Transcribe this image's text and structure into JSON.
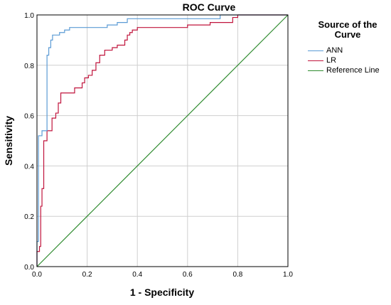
{
  "chart_data": {
    "type": "line",
    "title": "ROC Curve",
    "xlabel": "1 - Specificity",
    "ylabel": "Sensitivity",
    "xlim": [
      0,
      1
    ],
    "ylim": [
      0,
      1
    ],
    "xticks": [
      "0.0",
      "0.2",
      "0.4",
      "0.6",
      "0.8",
      "1.0"
    ],
    "yticks": [
      "0.0",
      "0.2",
      "0.4",
      "0.6",
      "0.8",
      "1.0"
    ],
    "grid": true,
    "legend": {
      "title": "Source of the Curve",
      "placement": "right"
    },
    "series": [
      {
        "name": "ANN",
        "color": "#5b9bd5",
        "points": [
          [
            0,
            0
          ],
          [
            0,
            0.1
          ],
          [
            0.006,
            0.1
          ],
          [
            0.006,
            0.52
          ],
          [
            0.02,
            0.52
          ],
          [
            0.02,
            0.54
          ],
          [
            0.04,
            0.54
          ],
          [
            0.04,
            0.84
          ],
          [
            0.047,
            0.84
          ],
          [
            0.047,
            0.87
          ],
          [
            0.055,
            0.87
          ],
          [
            0.055,
            0.9
          ],
          [
            0.062,
            0.9
          ],
          [
            0.062,
            0.92
          ],
          [
            0.09,
            0.92
          ],
          [
            0.09,
            0.93
          ],
          [
            0.11,
            0.93
          ],
          [
            0.11,
            0.94
          ],
          [
            0.13,
            0.94
          ],
          [
            0.13,
            0.95
          ],
          [
            0.28,
            0.95
          ],
          [
            0.28,
            0.96
          ],
          [
            0.32,
            0.96
          ],
          [
            0.32,
            0.97
          ],
          [
            0.36,
            0.97
          ],
          [
            0.36,
            0.985
          ],
          [
            0.73,
            0.985
          ],
          [
            0.73,
            1.0
          ],
          [
            1.0,
            1.0
          ]
        ]
      },
      {
        "name": "LR",
        "color": "#c0143c",
        "points": [
          [
            0,
            0
          ],
          [
            0,
            0.06
          ],
          [
            0.01,
            0.06
          ],
          [
            0.01,
            0.08
          ],
          [
            0.015,
            0.08
          ],
          [
            0.015,
            0.24
          ],
          [
            0.02,
            0.24
          ],
          [
            0.02,
            0.31
          ],
          [
            0.027,
            0.31
          ],
          [
            0.027,
            0.5
          ],
          [
            0.04,
            0.5
          ],
          [
            0.04,
            0.54
          ],
          [
            0.06,
            0.54
          ],
          [
            0.06,
            0.59
          ],
          [
            0.075,
            0.59
          ],
          [
            0.075,
            0.61
          ],
          [
            0.085,
            0.61
          ],
          [
            0.085,
            0.65
          ],
          [
            0.095,
            0.65
          ],
          [
            0.095,
            0.69
          ],
          [
            0.15,
            0.69
          ],
          [
            0.15,
            0.71
          ],
          [
            0.18,
            0.71
          ],
          [
            0.18,
            0.73
          ],
          [
            0.19,
            0.73
          ],
          [
            0.19,
            0.75
          ],
          [
            0.205,
            0.75
          ],
          [
            0.205,
            0.76
          ],
          [
            0.22,
            0.76
          ],
          [
            0.22,
            0.78
          ],
          [
            0.235,
            0.78
          ],
          [
            0.235,
            0.81
          ],
          [
            0.25,
            0.81
          ],
          [
            0.25,
            0.84
          ],
          [
            0.27,
            0.84
          ],
          [
            0.27,
            0.86
          ],
          [
            0.3,
            0.86
          ],
          [
            0.3,
            0.87
          ],
          [
            0.32,
            0.87
          ],
          [
            0.32,
            0.88
          ],
          [
            0.35,
            0.88
          ],
          [
            0.35,
            0.9
          ],
          [
            0.36,
            0.9
          ],
          [
            0.36,
            0.92
          ],
          [
            0.37,
            0.92
          ],
          [
            0.37,
            0.93
          ],
          [
            0.38,
            0.93
          ],
          [
            0.38,
            0.94
          ],
          [
            0.4,
            0.94
          ],
          [
            0.4,
            0.95
          ],
          [
            0.6,
            0.95
          ],
          [
            0.6,
            0.96
          ],
          [
            0.69,
            0.96
          ],
          [
            0.69,
            0.97
          ],
          [
            0.78,
            0.97
          ],
          [
            0.78,
            0.99
          ],
          [
            0.8,
            0.99
          ],
          [
            0.8,
            1.0
          ],
          [
            1.0,
            1.0
          ]
        ]
      },
      {
        "name": "Reference Line",
        "color": "#2e8b2e",
        "points": [
          [
            0,
            0
          ],
          [
            1,
            1
          ]
        ]
      }
    ]
  }
}
